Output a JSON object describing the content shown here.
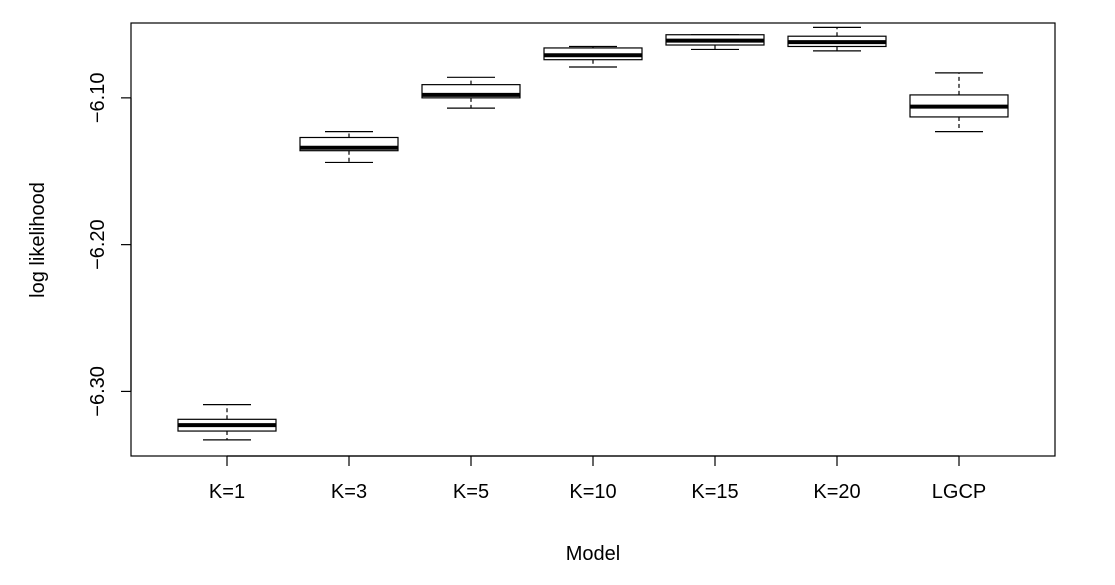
{
  "chart_data": {
    "type": "box",
    "title": "",
    "xlabel": "Model",
    "ylabel": "log likelihood",
    "categories": [
      "K=1",
      "K=3",
      "K=5",
      "K=10",
      "K=15",
      "K=20",
      "LGCP"
    ],
    "yticks": [
      -6.1,
      -6.2,
      -6.3
    ],
    "ytick_labels": [
      "-6.10",
      "-6.20",
      "-6.30"
    ],
    "ylim": [
      -6.344,
      -6.049
    ],
    "boxes": [
      {
        "category": "K=1",
        "min": -6.333,
        "q1": -6.327,
        "median": -6.323,
        "q3": -6.319,
        "max": -6.309
      },
      {
        "category": "K=3",
        "min": -6.144,
        "q1": -6.136,
        "median": -6.134,
        "q3": -6.127,
        "max": -6.123
      },
      {
        "category": "K=5",
        "min": -6.107,
        "q1": -6.1,
        "median": -6.098,
        "q3": -6.091,
        "max": -6.086
      },
      {
        "category": "K=10",
        "min": -6.079,
        "q1": -6.074,
        "median": -6.071,
        "q3": -6.066,
        "max": -6.065
      },
      {
        "category": "K=15",
        "min": -6.067,
        "q1": -6.064,
        "median": -6.061,
        "q3": -6.057,
        "max": -6.057
      },
      {
        "category": "K=20",
        "min": -6.068,
        "q1": -6.065,
        "median": -6.062,
        "q3": -6.058,
        "max": -6.052
      },
      {
        "category": "LGCP",
        "min": -6.123,
        "q1": -6.113,
        "median": -6.106,
        "q3": -6.098,
        "max": -6.083
      }
    ],
    "grid": false,
    "legend": "none"
  }
}
